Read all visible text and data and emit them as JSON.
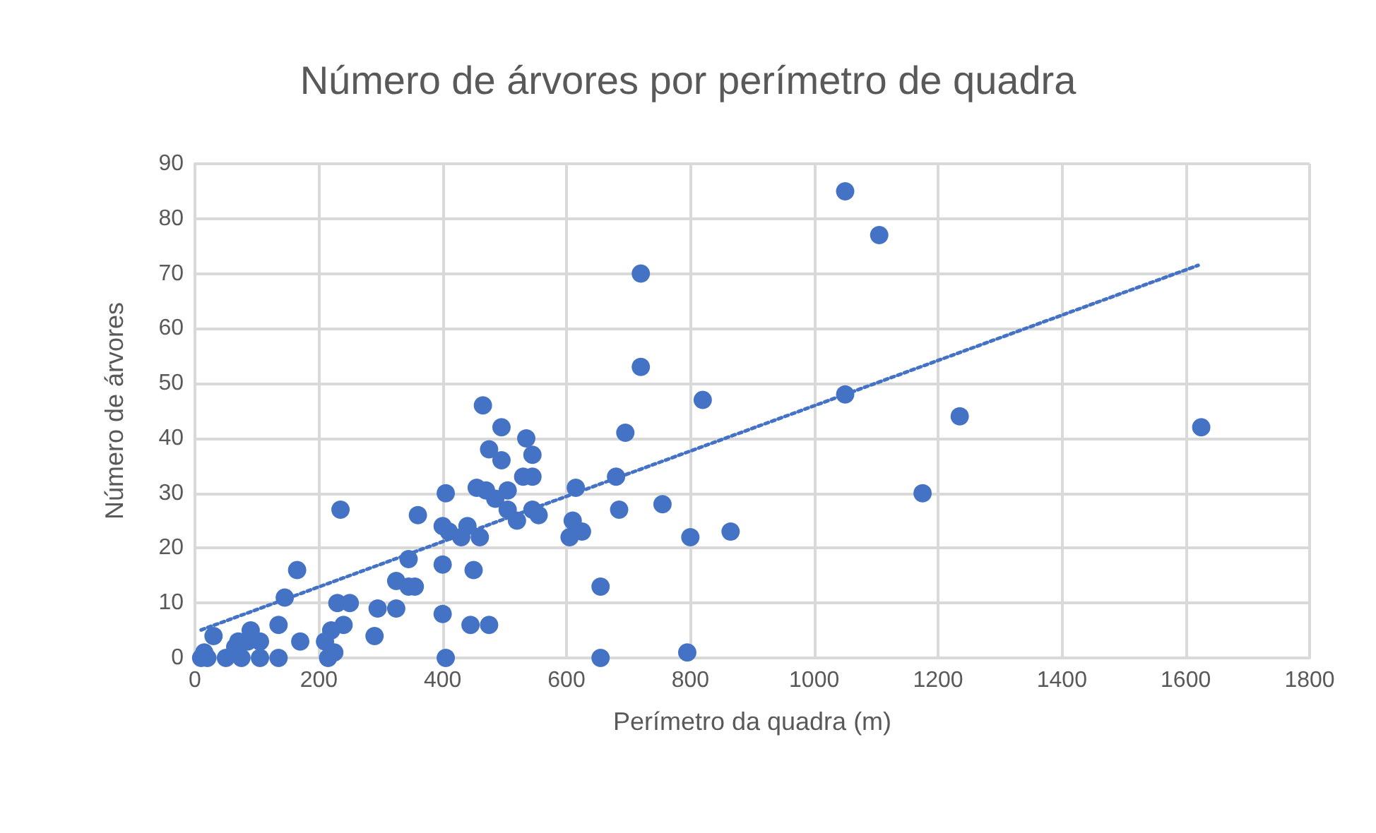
{
  "chart_data": {
    "type": "scatter",
    "title": "Número de árvores por perímetro de quadra",
    "xlabel": "Perímetro da quadra (m)",
    "ylabel": "Número de árvores",
    "xlim": [
      0,
      1800
    ],
    "xticks": [
      0,
      200,
      400,
      600,
      800,
      1000,
      1200,
      1400,
      1600,
      1800
    ],
    "ylim": [
      0,
      90
    ],
    "yticks": [
      0,
      10,
      20,
      30,
      40,
      50,
      60,
      70,
      80,
      90
    ],
    "grid": true,
    "marker": "circle",
    "series": [
      {
        "color": "#4472c4",
        "x": [
          1625,
          1175,
          1235,
          1050,
          1105,
          1050,
          820,
          720,
          720,
          695,
          755,
          800,
          865,
          795,
          655,
          655,
          685,
          680,
          615,
          610,
          605,
          625,
          465,
          495,
          475,
          535,
          545,
          545,
          530,
          495,
          405,
          470,
          485,
          505,
          505,
          545,
          520,
          555,
          455,
          440,
          410,
          430,
          460,
          400,
          360,
          235,
          345,
          400,
          450,
          345,
          355,
          325,
          325,
          295,
          400,
          290,
          445,
          475,
          405,
          165,
          145,
          170,
          135,
          135,
          230,
          250,
          240,
          220,
          210,
          215,
          225,
          30,
          20,
          50,
          10,
          65,
          85,
          105,
          105,
          75,
          70,
          90,
          15
        ],
        "values": [
          42,
          30,
          44,
          48,
          77,
          85,
          47,
          70,
          53,
          41,
          28,
          22,
          23,
          1,
          0,
          13,
          27,
          33,
          31,
          25,
          22,
          23,
          46,
          42,
          38,
          40,
          37,
          33,
          33,
          36,
          30,
          30.5,
          29,
          30.5,
          27,
          27,
          25,
          26,
          31,
          24,
          23,
          22,
          22,
          24,
          26,
          27,
          18,
          17,
          16,
          13,
          13,
          14,
          9,
          9,
          8,
          4,
          6,
          6,
          0,
          16,
          11,
          3,
          6,
          0,
          10,
          10,
          6,
          5,
          3,
          0,
          1,
          4,
          0,
          0,
          0,
          2,
          3,
          3,
          0,
          0,
          3,
          5,
          1
        ]
      },
      {
        "type": "line",
        "color": "#4472c4",
        "line_style": "dotted",
        "marker": "none",
        "x": [
          10,
          1620
        ],
        "values": [
          5.1,
          71.5
        ]
      }
    ]
  }
}
